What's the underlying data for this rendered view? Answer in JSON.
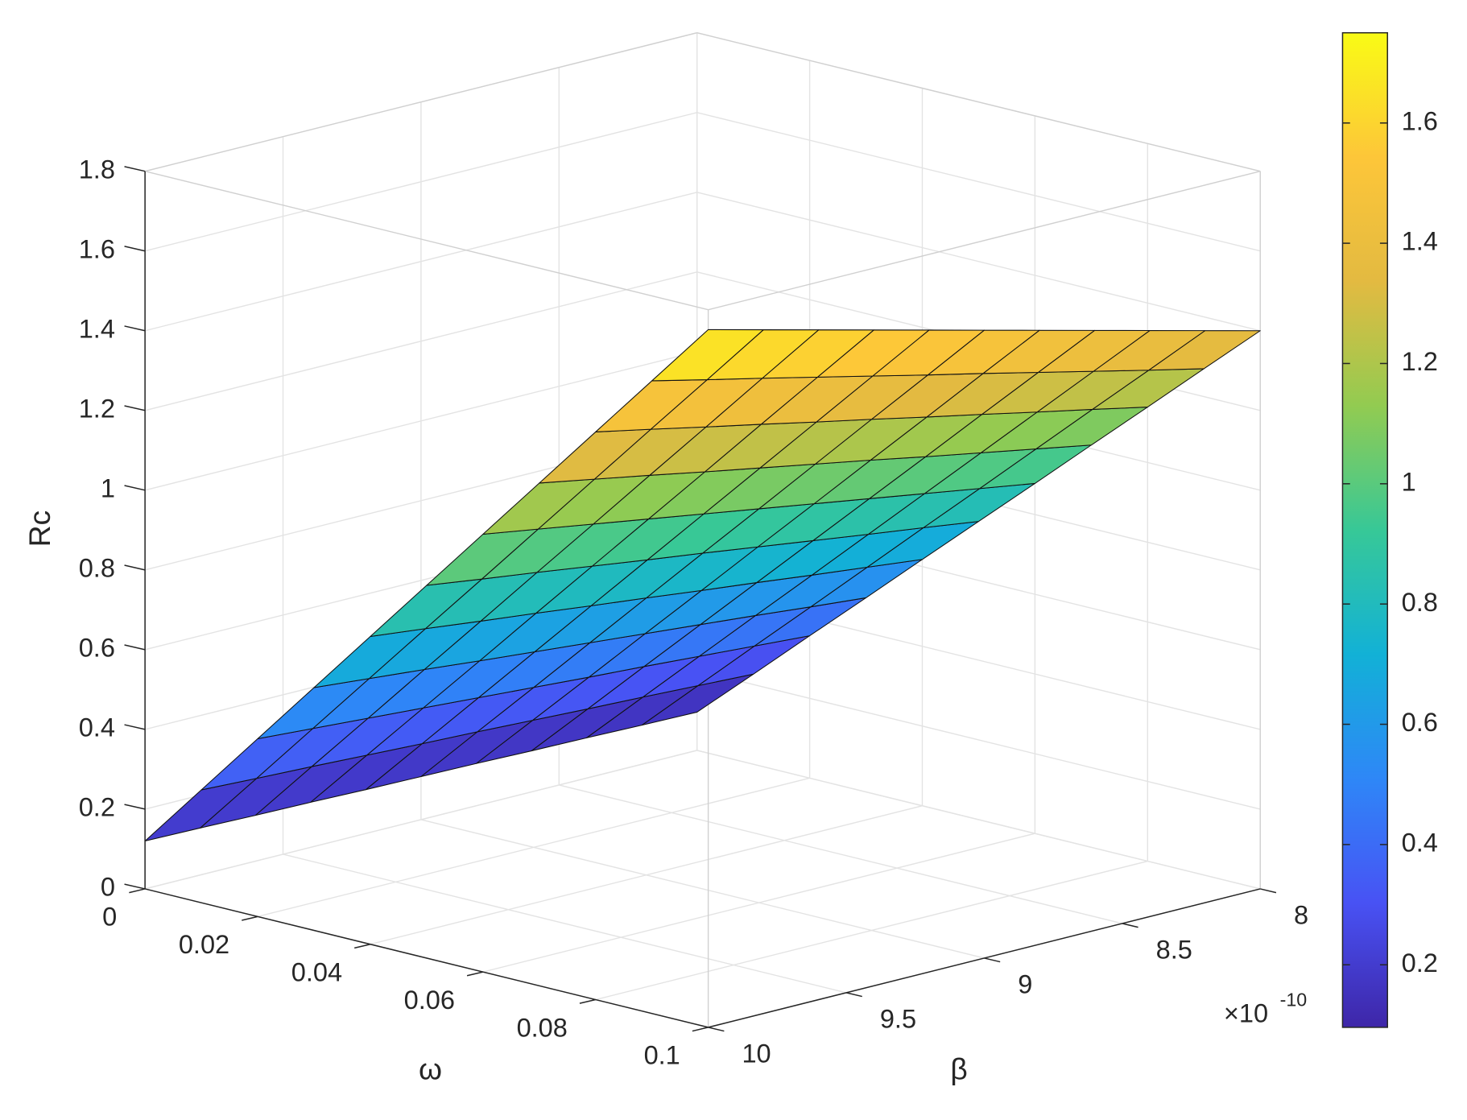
{
  "chart_data": {
    "type": "surface",
    "xlabel": "ω",
    "ylabel": "β",
    "zlabel": "Rc",
    "x": [
      0,
      0.01,
      0.02,
      0.03,
      0.04,
      0.05,
      0.06,
      0.07,
      0.08,
      0.09,
      0.1
    ],
    "y": [
      8e-10,
      8.2e-10,
      8.4e-10,
      8.6e-10,
      8.8e-10,
      9e-10,
      9.2e-10,
      9.4e-10,
      9.6e-10,
      9.8e-10,
      1e-09
    ],
    "z": [
      [
        0.096,
        0.226,
        0.357,
        0.487,
        0.618,
        0.748,
        0.878,
        1.009,
        1.139,
        1.27,
        1.4
      ],
      [
        0.098,
        0.232,
        0.366,
        0.499,
        0.633,
        0.767,
        0.9,
        1.034,
        1.168,
        1.301,
        1.435
      ],
      [
        0.101,
        0.238,
        0.375,
        0.512,
        0.648,
        0.785,
        0.922,
        1.059,
        1.196,
        1.333,
        1.47
      ],
      [
        0.103,
        0.243,
        0.384,
        0.524,
        0.664,
        0.804,
        0.944,
        1.084,
        1.225,
        1.365,
        1.505
      ],
      [
        0.106,
        0.249,
        0.392,
        0.536,
        0.679,
        0.823,
        0.966,
        1.11,
        1.253,
        1.397,
        1.54
      ],
      [
        0.108,
        0.255,
        0.401,
        0.548,
        0.695,
        0.842,
        0.988,
        1.135,
        1.282,
        1.428,
        1.575
      ],
      [
        0.11,
        0.26,
        0.41,
        0.56,
        0.71,
        0.86,
        1.01,
        1.16,
        1.31,
        1.46,
        1.61
      ],
      [
        0.113,
        0.266,
        0.419,
        0.572,
        0.726,
        0.879,
        1.032,
        1.185,
        1.339,
        1.492,
        1.645
      ],
      [
        0.115,
        0.272,
        0.428,
        0.585,
        0.741,
        0.898,
        1.054,
        1.211,
        1.367,
        1.524,
        1.68
      ],
      [
        0.118,
        0.277,
        0.437,
        0.597,
        0.757,
        0.916,
        1.076,
        1.236,
        1.396,
        1.555,
        1.715
      ],
      [
        0.12,
        0.283,
        0.446,
        0.609,
        0.772,
        0.935,
        1.098,
        1.261,
        1.424,
        1.587,
        1.75
      ]
    ],
    "xlim": [
      0,
      0.1
    ],
    "ylim": [
      8e-10,
      1e-09
    ],
    "zlim": [
      0,
      1.8
    ],
    "xticks": [
      0,
      0.02,
      0.04,
      0.06,
      0.08,
      0.1
    ],
    "yticks": [
      {
        "value": 8e-10,
        "label": "8"
      },
      {
        "value": 8.5e-10,
        "label": "8.5"
      },
      {
        "value": 9e-10,
        "label": "9"
      },
      {
        "value": 9.5e-10,
        "label": "9.5"
      },
      {
        "value": 1e-09,
        "label": "10"
      }
    ],
    "y_exponent": {
      "base": "×10",
      "power": "-10"
    },
    "zticks": [
      0,
      0.2,
      0.4,
      0.6,
      0.8,
      1,
      1.2,
      1.4,
      1.6,
      1.8
    ],
    "colormap": "parula",
    "clim": [
      0.096,
      1.75
    ],
    "colorbar_ticks": [
      0.2,
      0.4,
      0.6,
      0.8,
      1,
      1.2,
      1.4,
      1.6
    ],
    "grid": true
  }
}
